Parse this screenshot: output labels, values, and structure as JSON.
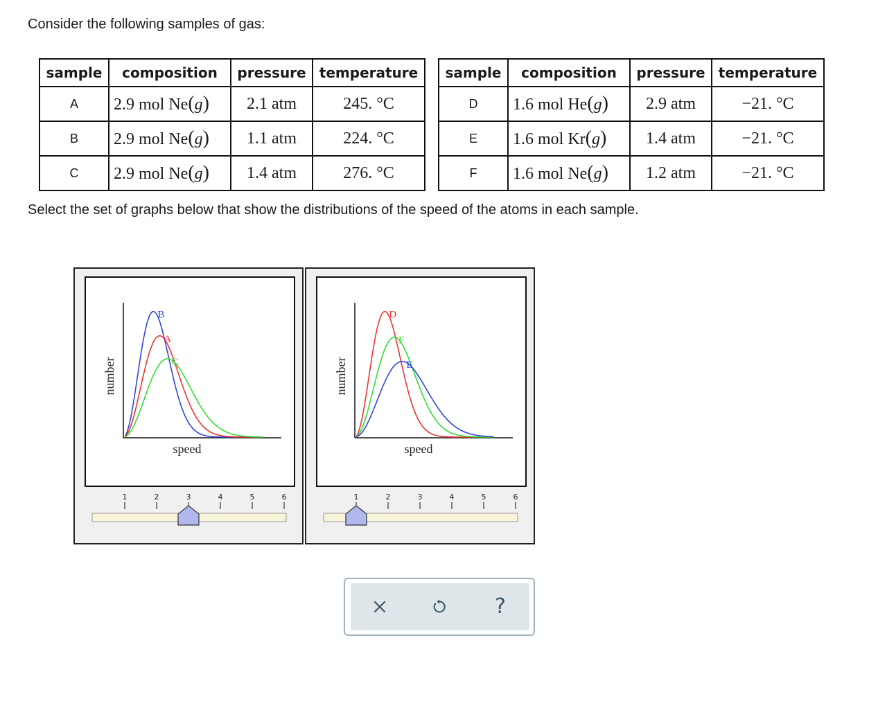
{
  "prompt_intro": "Consider the following samples of gas:",
  "prompt_question": "Select the set of graphs below that show the distributions of the speed of the atoms in each sample.",
  "table_headers": [
    "sample",
    "composition",
    "pressure",
    "temperature"
  ],
  "table_left": [
    {
      "sample": "A",
      "amount": "2.9 mol",
      "gas": "Ne",
      "state": "g",
      "pressure": "2.1 atm",
      "temperature": "245. °C"
    },
    {
      "sample": "B",
      "amount": "2.9 mol",
      "gas": "Ne",
      "state": "g",
      "pressure": "1.1 atm",
      "temperature": "224. °C"
    },
    {
      "sample": "C",
      "amount": "2.9 mol",
      "gas": "Ne",
      "state": "g",
      "pressure": "1.4 atm",
      "temperature": "276. °C"
    }
  ],
  "table_right": [
    {
      "sample": "D",
      "amount": "1.6 mol",
      "gas": "He",
      "state": "g",
      "pressure": "2.9 atm",
      "temperature": "−21. °C"
    },
    {
      "sample": "E",
      "amount": "1.6 mol",
      "gas": "Kr",
      "state": "g",
      "pressure": "1.4 atm",
      "temperature": "−21. °C"
    },
    {
      "sample": "F",
      "amount": "1.6 mol",
      "gas": "Ne",
      "state": "g",
      "pressure": "1.2 atm",
      "temperature": "−21. °C"
    }
  ],
  "graphs": [
    {
      "x_label": "speed",
      "y_label": "number",
      "curves": [
        {
          "label": "B",
          "color": "#3344dd",
          "peak_speed": 0.19,
          "peak_height": 0.93
        },
        {
          "label": "A",
          "color": "#ee3333",
          "peak_speed": 0.23,
          "peak_height": 0.75
        },
        {
          "label": "C",
          "color": "#33dd33",
          "peak_speed": 0.28,
          "peak_height": 0.58
        }
      ],
      "slider_ticks": [
        "1",
        "2",
        "3",
        "4",
        "5",
        "6"
      ],
      "slider_value": 3
    },
    {
      "x_label": "speed",
      "y_label": "number",
      "curves": [
        {
          "label": "D",
          "color": "#ee3333",
          "peak_speed": 0.19,
          "peak_height": 0.93
        },
        {
          "label": "F",
          "color": "#33dd33",
          "peak_speed": 0.25,
          "peak_height": 0.74
        },
        {
          "label": "E",
          "color": "#3344dd",
          "peak_speed": 0.3,
          "peak_height": 0.56
        }
      ],
      "slider_ticks": [
        "1",
        "2",
        "3",
        "4",
        "5",
        "6"
      ],
      "slider_value": 1
    }
  ],
  "toolbar": {
    "clear": "×",
    "undo": "undo-icon",
    "help": "?"
  },
  "colors": {
    "slider_thumb": "#b0b8ee",
    "slider_track": "#f6f3d8",
    "toolbar_bg": "#dfe6ea",
    "toolbar_icon": "#3a5566"
  }
}
